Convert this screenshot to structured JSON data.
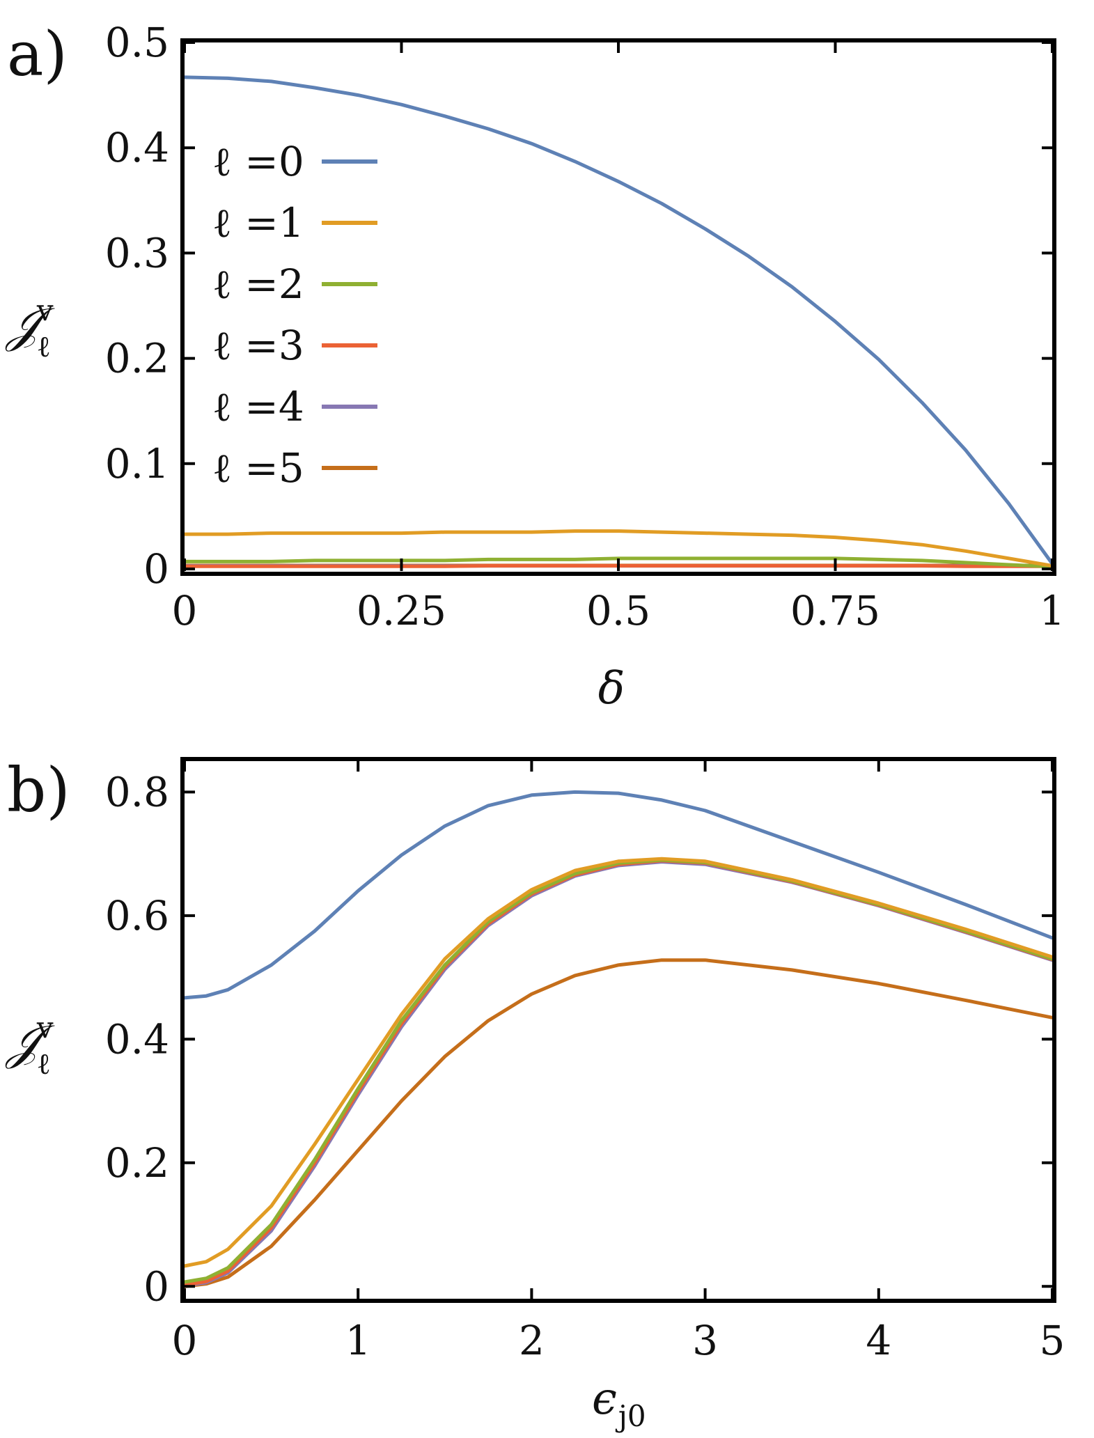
{
  "chart_data": [
    {
      "type": "line",
      "panel_label": "a)",
      "xlabel": "δ",
      "ylabel": "𝒥",
      "ylabel_sup": "v",
      "ylabel_sub": "ℓ",
      "xlim": [
        0,
        1
      ],
      "ylim": [
        0,
        0.5
      ],
      "xticks": [
        0,
        0.25,
        0.5,
        0.75,
        1
      ],
      "xtick_labels": [
        "0",
        "0.25",
        "0.5",
        "0.75",
        "1"
      ],
      "yticks": [
        0,
        0.1,
        0.2,
        0.3,
        0.4,
        0.5
      ],
      "ytick_labels": [
        "0",
        "0.1",
        "0.2",
        "0.3",
        "0.4",
        "0.5"
      ],
      "legend_position": "upper-left",
      "x": [
        0,
        0.05,
        0.1,
        0.15,
        0.2,
        0.25,
        0.3,
        0.35,
        0.4,
        0.45,
        0.5,
        0.55,
        0.6,
        0.65,
        0.7,
        0.75,
        0.8,
        0.85,
        0.9,
        0.95,
        1
      ],
      "series": [
        {
          "name": "ℓ =0",
          "color": "#5E81B5",
          "values": [
            0.467,
            0.466,
            0.463,
            0.457,
            0.45,
            0.441,
            0.43,
            0.418,
            0.404,
            0.387,
            0.368,
            0.347,
            0.323,
            0.297,
            0.268,
            0.235,
            0.199,
            0.158,
            0.113,
            0.062,
            0.005
          ]
        },
        {
          "name": "ℓ =1",
          "color": "#E19C24",
          "values": [
            0.033,
            0.033,
            0.034,
            0.034,
            0.034,
            0.034,
            0.035,
            0.035,
            0.035,
            0.036,
            0.036,
            0.035,
            0.034,
            0.033,
            0.032,
            0.03,
            0.027,
            0.023,
            0.017,
            0.01,
            0.003
          ]
        },
        {
          "name": "ℓ =2",
          "color": "#8FB032",
          "values": [
            0.007,
            0.007,
            0.007,
            0.008,
            0.008,
            0.008,
            0.008,
            0.009,
            0.009,
            0.009,
            0.01,
            0.01,
            0.01,
            0.01,
            0.01,
            0.01,
            0.009,
            0.008,
            0.006,
            0.004,
            0.002
          ]
        },
        {
          "name": "ℓ =3",
          "color": "#EB6235",
          "values": [
            0.002,
            0.002,
            0.002,
            0.002,
            0.002,
            0.002,
            0.002,
            0.003,
            0.003,
            0.003,
            0.003,
            0.003,
            0.003,
            0.003,
            0.003,
            0.003,
            0.003,
            0.003,
            0.002,
            0.002,
            0.001
          ]
        },
        {
          "name": "ℓ =4",
          "color": "#8778B3",
          "values": [
            0.001,
            0.001,
            0.001,
            0.001,
            0.001,
            0.001,
            0.001,
            0.001,
            0.001,
            0.001,
            0.001,
            0.001,
            0.001,
            0.001,
            0.001,
            0.001,
            0.001,
            0.001,
            0.001,
            0.001,
            0.001
          ]
        },
        {
          "name": "ℓ =5",
          "color": "#C56E1A",
          "values": [
            0.0,
            0.0,
            0.0,
            0.0,
            0.0,
            0.0,
            0.0,
            0.0,
            0.0,
            0.0,
            0.0,
            0.0,
            0.0,
            0.0,
            0.0,
            0.0,
            0.0,
            0.0,
            0.0,
            0.0,
            0.0
          ]
        }
      ]
    },
    {
      "type": "line",
      "panel_label": "b)",
      "xlabel": "ϵ",
      "xlabel_sub": "j0",
      "ylabel": "𝒥",
      "ylabel_sup": "v",
      "ylabel_sub": "ℓ",
      "xlim": [
        0,
        5
      ],
      "ylim": [
        -0.02,
        0.85
      ],
      "xticks": [
        0,
        1,
        2,
        3,
        4,
        5
      ],
      "xtick_labels": [
        "0",
        "1",
        "2",
        "3",
        "4",
        "5"
      ],
      "yticks": [
        0,
        0.2,
        0.4,
        0.6,
        0.8
      ],
      "ytick_labels": [
        "0",
        "0.2",
        "0.4",
        "0.6",
        "0.8"
      ],
      "x": [
        0,
        0.125,
        0.25,
        0.5,
        0.75,
        1,
        1.25,
        1.5,
        1.75,
        2,
        2.25,
        2.5,
        2.75,
        3,
        3.5,
        4,
        4.5,
        5
      ],
      "series": [
        {
          "name": "ℓ =0",
          "color": "#5E81B5",
          "values": [
            0.467,
            0.47,
            0.48,
            0.52,
            0.575,
            0.64,
            0.698,
            0.745,
            0.778,
            0.795,
            0.8,
            0.798,
            0.787,
            0.77,
            0.72,
            0.67,
            0.618,
            0.564
          ]
        },
        {
          "name": "ℓ =1",
          "color": "#E19C24",
          "values": [
            0.033,
            0.04,
            0.06,
            0.13,
            0.23,
            0.335,
            0.44,
            0.53,
            0.595,
            0.642,
            0.673,
            0.688,
            0.692,
            0.688,
            0.658,
            0.62,
            0.578,
            0.533
          ]
        },
        {
          "name": "ℓ =2",
          "color": "#8FB032",
          "values": [
            0.007,
            0.013,
            0.03,
            0.1,
            0.205,
            0.32,
            0.43,
            0.52,
            0.59,
            0.637,
            0.668,
            0.685,
            0.69,
            0.686,
            0.656,
            0.618,
            0.575,
            0.53
          ]
        },
        {
          "name": "ℓ =3",
          "color": "#EB6235",
          "values": [
            0.002,
            0.008,
            0.025,
            0.095,
            0.2,
            0.315,
            0.425,
            0.517,
            0.587,
            0.635,
            0.666,
            0.683,
            0.689,
            0.685,
            0.655,
            0.617,
            0.574,
            0.529
          ]
        },
        {
          "name": "ℓ =4",
          "color": "#8778B3",
          "values": [
            0.001,
            0.006,
            0.022,
            0.09,
            0.195,
            0.31,
            0.42,
            0.513,
            0.584,
            0.632,
            0.664,
            0.681,
            0.687,
            0.683,
            0.654,
            0.616,
            0.573,
            0.528
          ]
        },
        {
          "name": "ℓ =5",
          "color": "#C56E1A",
          "values": [
            0.0,
            0.004,
            0.015,
            0.065,
            0.14,
            0.22,
            0.3,
            0.372,
            0.43,
            0.473,
            0.503,
            0.52,
            0.528,
            0.528,
            0.512,
            0.49,
            0.463,
            0.435
          ]
        }
      ]
    }
  ]
}
